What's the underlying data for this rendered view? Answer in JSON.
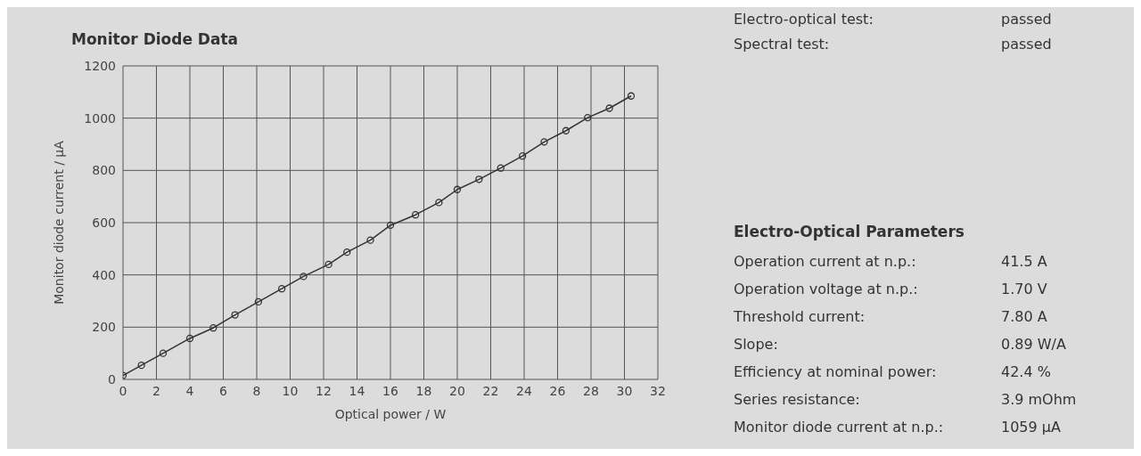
{
  "chart_data": [
    {
      "type": "line",
      "title": "Monitor Diode Data",
      "xlabel": "Optical power / W",
      "ylabel": "Monitor diode current / µA",
      "x": [
        0,
        1.1,
        2.4,
        4.0,
        5.4,
        6.7,
        8.1,
        9.5,
        10.8,
        12.3,
        13.4,
        14.8,
        16.0,
        17.5,
        18.9,
        20.0,
        21.3,
        22.6,
        23.9,
        25.2,
        26.5,
        27.8,
        29.1,
        30.4
      ],
      "series": [
        {
          "color": "#333333",
          "values": [
            15,
            54,
            100,
            157,
            197,
            247,
            297,
            347,
            394,
            440,
            487,
            533,
            590,
            630,
            677,
            727,
            766,
            809,
            855,
            909,
            952,
            1002,
            1038,
            1085
          ]
        }
      ],
      "xlim": [
        0,
        32
      ],
      "xticks": [
        0,
        2,
        4,
        6,
        8,
        10,
        12,
        14,
        16,
        18,
        20,
        22,
        24,
        26,
        28,
        30,
        32
      ],
      "ylim": [
        0,
        1200
      ],
      "yticks": [
        0,
        200,
        400,
        600,
        800,
        1000,
        1200
      ],
      "grid": true,
      "marker": "circle",
      "line_style": "solid"
    },
    {
      "type": "other",
      "title": "Electro-Optical Parameters",
      "annotations": [
        "Electro-optical test:",
        "passed",
        "Spectral test:",
        "passed",
        "Operation current at n.p.:",
        "41.5 A",
        "Operation voltage at n.p.:",
        "1.70 V",
        "Threshold current:",
        "7.80 A",
        "Slope:",
        "0.89 W/A",
        "Efficiency at nominal power:",
        "42.4 %",
        "Series resistance:",
        "3.9 mOhm",
        "Monitor diode current at n.p.:",
        "1059 µA"
      ]
    }
  ]
}
